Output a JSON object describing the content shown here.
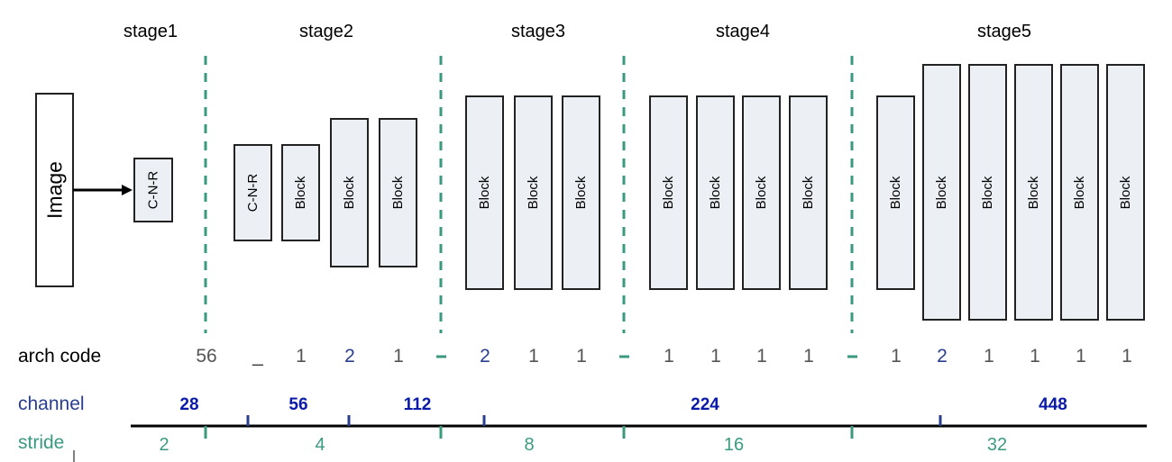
{
  "stages": [
    "stage1",
    "stage2",
    "stage3",
    "stage4",
    "stage5"
  ],
  "image_label": "Image",
  "blocks": {
    "cnr": "C-N-R",
    "block": "Block"
  },
  "rows": {
    "arch_code": "arch code",
    "channel": "channel",
    "stride": "stride"
  },
  "arch_code_values": [
    "56",
    "_",
    "1",
    "2",
    "1",
    "2",
    "1",
    "1",
    "1",
    "1",
    "1",
    "1",
    "1",
    "2",
    "1",
    "1",
    "1",
    "1"
  ],
  "channel_values": [
    "28",
    "56",
    "112",
    "224",
    "448"
  ],
  "stride_values": [
    "2",
    "4",
    "8",
    "16",
    "32"
  ],
  "colors": {
    "dashed_divider": "#3a9a80",
    "channel_label": "#2a3e8f",
    "channel_values": "#0a1aa8",
    "stride": "#3a9a80",
    "code_highlight": "#2a3e8f",
    "block_fill": "#ecf0f4"
  }
}
